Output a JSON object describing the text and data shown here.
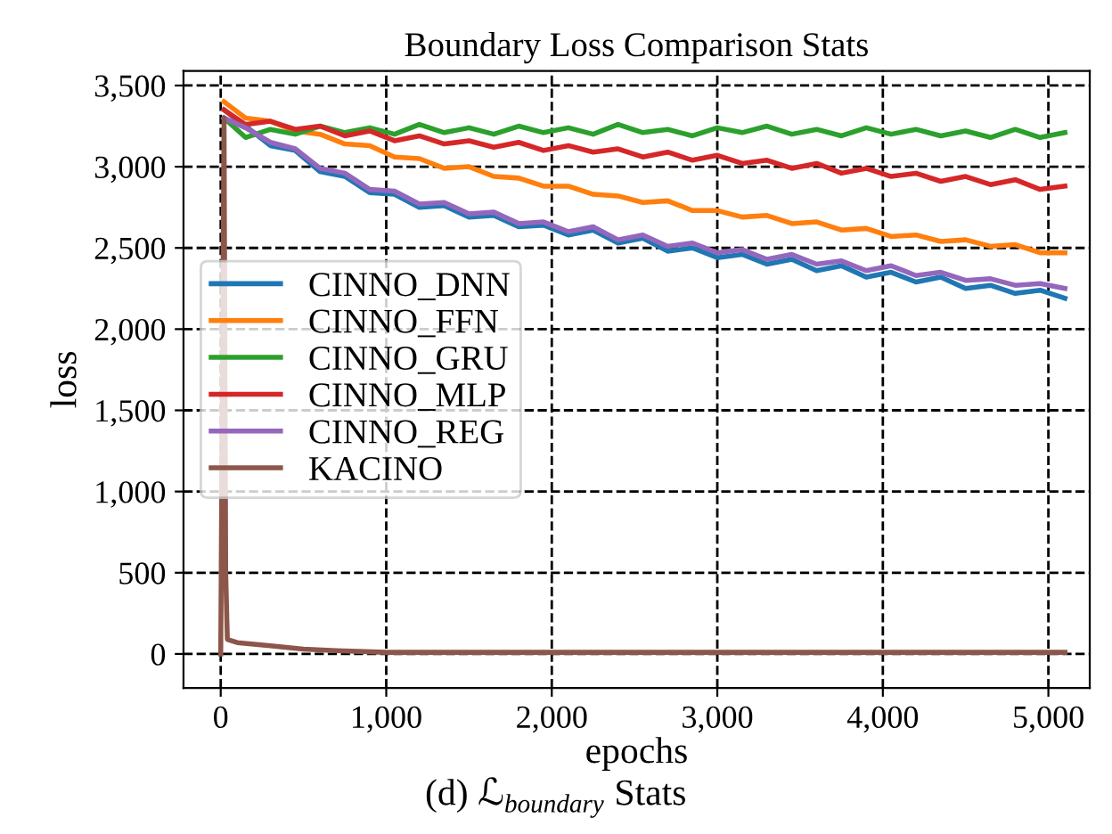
{
  "chart_data": {
    "type": "line",
    "title": "Boundary Loss Comparison Stats",
    "xlabel": "epochs",
    "ylabel": "loss",
    "annotations": [
      "(d) ℒ$_{boundary}$ Stats"
    ],
    "x": [
      20,
      150,
      300,
      450,
      600,
      750,
      900,
      1050,
      1200,
      1350,
      1500,
      1650,
      1800,
      1950,
      2100,
      2250,
      2400,
      2550,
      2700,
      2850,
      3000,
      3150,
      3300,
      3450,
      3600,
      3750,
      3900,
      4050,
      4200,
      4350,
      4500,
      4650,
      4800,
      4950,
      5100
    ],
    "series": [
      {
        "name": "CINNO_DNN",
        "color": "#1f77b4",
        "values": [
          3350,
          3250,
          3130,
          3100,
          2970,
          2940,
          2840,
          2830,
          2750,
          2760,
          2690,
          2700,
          2630,
          2640,
          2580,
          2610,
          2530,
          2560,
          2480,
          2500,
          2440,
          2460,
          2400,
          2430,
          2360,
          2390,
          2320,
          2350,
          2290,
          2320,
          2250,
          2270,
          2220,
          2240,
          2190
        ]
      },
      {
        "name": "CINNO_FFN",
        "color": "#ff7f0e",
        "values": [
          3400,
          3300,
          3280,
          3220,
          3200,
          3140,
          3130,
          3060,
          3050,
          2990,
          3000,
          2940,
          2930,
          2880,
          2880,
          2830,
          2820,
          2780,
          2790,
          2730,
          2730,
          2690,
          2700,
          2650,
          2660,
          2610,
          2620,
          2570,
          2580,
          2540,
          2550,
          2510,
          2520,
          2470,
          2470
        ]
      },
      {
        "name": "CINNO_GRU",
        "color": "#2ca02c",
        "values": [
          3300,
          3180,
          3230,
          3200,
          3250,
          3210,
          3240,
          3200,
          3260,
          3210,
          3240,
          3200,
          3250,
          3210,
          3240,
          3200,
          3260,
          3210,
          3230,
          3190,
          3240,
          3210,
          3250,
          3200,
          3230,
          3190,
          3240,
          3200,
          3230,
          3190,
          3220,
          3180,
          3230,
          3180,
          3210
        ]
      },
      {
        "name": "CINNO_MLP",
        "color": "#d62728",
        "values": [
          3350,
          3260,
          3280,
          3230,
          3250,
          3190,
          3220,
          3160,
          3190,
          3140,
          3160,
          3120,
          3150,
          3100,
          3130,
          3090,
          3110,
          3060,
          3090,
          3040,
          3070,
          3020,
          3040,
          2990,
          3020,
          2960,
          2990,
          2940,
          2960,
          2910,
          2940,
          2890,
          2920,
          2860,
          2880
        ]
      },
      {
        "name": "CINNO_REG",
        "color": "#9467bd",
        "values": [
          3300,
          3240,
          3150,
          3110,
          2990,
          2960,
          2860,
          2850,
          2770,
          2780,
          2710,
          2720,
          2650,
          2660,
          2600,
          2630,
          2550,
          2580,
          2510,
          2530,
          2470,
          2490,
          2430,
          2460,
          2400,
          2420,
          2360,
          2390,
          2330,
          2350,
          2300,
          2310,
          2270,
          2280,
          2250
        ]
      },
      {
        "name": "KACINO",
        "color": "#8c564b",
        "x": [
          0,
          20,
          30,
          40,
          100,
          200,
          300,
          500,
          700,
          1000,
          1500,
          2000,
          3000,
          4000,
          5100
        ],
        "values": [
          0,
          3300,
          500,
          90,
          70,
          60,
          50,
          30,
          20,
          10,
          10,
          10,
          10,
          10,
          10
        ]
      }
    ],
    "xlim": [
      -225,
      5250
    ],
    "ylim": [
      -210,
      3590
    ],
    "xticks": [
      0,
      {
        "value": 1000,
        "label": "1,000"
      },
      {
        "value": 2000,
        "label": "2,000"
      },
      {
        "value": 3000,
        "label": "3,000"
      },
      {
        "value": 4000,
        "label": "4,000"
      },
      {
        "value": 5000,
        "label": "5,000"
      }
    ],
    "yticks": [
      0,
      500,
      {
        "value": 1000,
        "label": "1,000"
      },
      {
        "value": 1500,
        "label": "1,500"
      },
      {
        "value": 2000,
        "label": "2,000"
      },
      {
        "value": 2500,
        "label": "2,500"
      },
      {
        "value": 3000,
        "label": "3,000"
      },
      {
        "value": 3500,
        "label": "3,500"
      }
    ],
    "grid": true,
    "line_style": "solid",
    "legend": "center left"
  }
}
